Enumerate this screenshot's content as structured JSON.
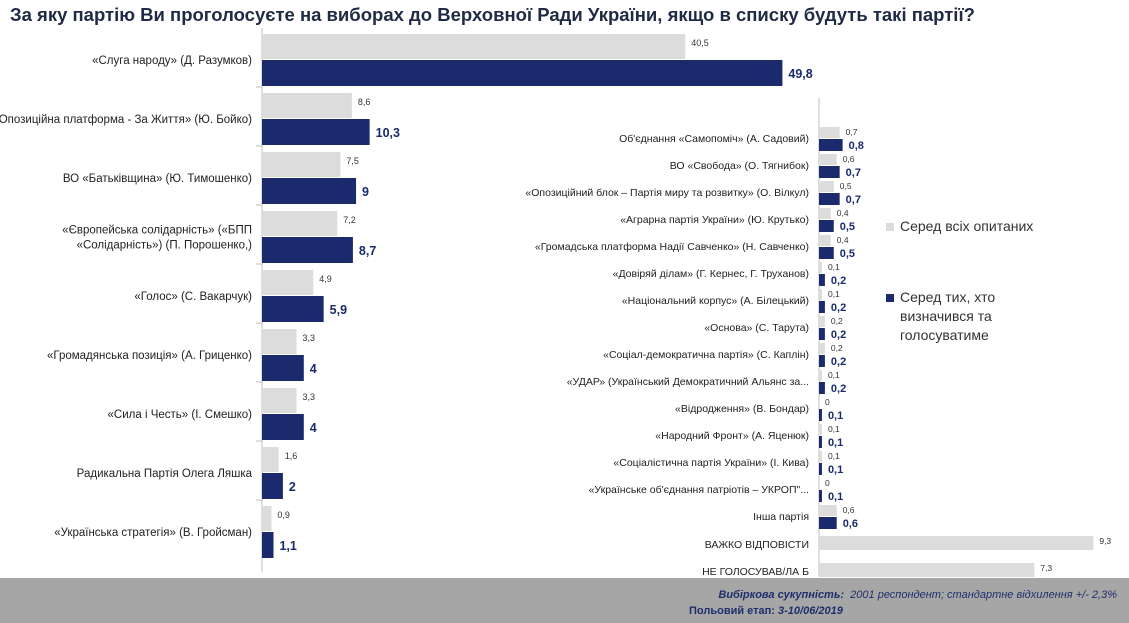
{
  "title": "За яку партію Ви проголосуєте на виборах до Верховної Ради України, якщо в списку будуть такі партії?",
  "colors": {
    "all": "#dcdcdc",
    "decided": "#1a2a6c",
    "footer_bg": "#a6a6a6",
    "title": "#1f2a44"
  },
  "legend": {
    "all": "Серед всіх опитаних",
    "decided": "Серед тих, хто визначився та голосуватиме"
  },
  "footer": {
    "sample_label": "Вибіркова сукупність:",
    "sample_value": "2001 респондент; стандартне відхилення +/- 2,3%",
    "field_label": "Польовий етап:",
    "field_value": "3-10/06/2019"
  },
  "chart_data": [
    {
      "type": "bar",
      "orientation": "horizontal",
      "categories": [
        "«Слуга народу» (Д. Разумков)",
        "«Опозиційна платформа - За Життя» (Ю. Бойко)",
        "ВО «Батьківщина» (Ю. Тимошенко)",
        "«Європейська солідарність» («БПП «Солідарність») (П. Порошенко,)",
        "«Голос» (С. Вакарчук)",
        "«Громадянська позиція» (А. Гриценко)",
        "«Сила і Честь» (І. Смешко)",
        "Радикальна Партія Олега Ляшка",
        "«Українська стратегія» (В. Гройсман)"
      ],
      "series": [
        {
          "name": "Серед всіх опитаних",
          "values": [
            40.5,
            8.6,
            7.5,
            7.2,
            4.9,
            3.3,
            3.3,
            1.6,
            0.9
          ],
          "labels": [
            "40,5",
            "8,6",
            "7,5",
            "7,2",
            "4,9",
            "3,3",
            "3,3",
            "1,6",
            "0,9"
          ]
        },
        {
          "name": "Серед тих, хто визначився та голосуватиме",
          "values": [
            49.8,
            10.3,
            9,
            8.7,
            5.9,
            4,
            4,
            2,
            1.1
          ],
          "labels": [
            "49,8",
            "10,3",
            "9",
            "8,7",
            "5,9",
            "4",
            "4",
            "2",
            "1,1"
          ]
        }
      ]
    },
    {
      "type": "bar",
      "orientation": "horizontal",
      "categories": [
        "Об'єднання «Самопоміч» (А. Садовий)",
        "ВО «Свобода» (О. Тягнибок)",
        "«Опозиційний блок – Партія миру та розвитку» (О. Вілкул)",
        "«Аграрна партія України» (Ю. Крутько)",
        "«Громадська платформа Надії Савченко» (Н. Савченко)",
        "«Довіряй ділам» (Г. Кернес, Г. Труханов)",
        "«Національний корпус» (А. Білецький)",
        "«Основа» (С. Тарута)",
        "«Соціал-демократична партія» (С. Каплін)",
        "«УДАР» (Український Демократичний Альянс за...",
        "«Відродження» (В. Бондар)",
        "«Народний Фронт» (А. Яценюк)",
        "«Соціалістична партія України» (І. Кива)",
        "«Українське об'єднання патріотів – УКРОП\"...",
        "Інша партія",
        "ВАЖКО ВІДПОВІСТИ",
        "НЕ ГОЛОСУВАВ/ЛА Б"
      ],
      "series": [
        {
          "name": "Серед всіх опитаних",
          "values": [
            0.7,
            0.6,
            0.5,
            0.4,
            0.4,
            0.1,
            0.1,
            0.2,
            0.2,
            0.1,
            0,
            0.1,
            0.1,
            0,
            0.6,
            9.3,
            7.3
          ],
          "labels": [
            "0,7",
            "0,6",
            "0,5",
            "0,4",
            "0,4",
            "0,1",
            "0,1",
            "0,2",
            "0,2",
            "0,1",
            "0",
            "0,1",
            "0,1",
            "0",
            "0,6",
            "9,3",
            "7,3"
          ]
        },
        {
          "name": "Серед тих, хто визначився та голосуватиме",
          "values": [
            0.8,
            0.7,
            0.7,
            0.5,
            0.5,
            0.2,
            0.2,
            0.2,
            0.2,
            0.2,
            0.1,
            0.1,
            0.1,
            0.1,
            0.6,
            null,
            null
          ],
          "labels": [
            "0,8",
            "0,7",
            "0,7",
            "0,5",
            "0,5",
            "0,2",
            "0,2",
            "0,2",
            "0,2",
            "0,2",
            "0,1",
            "0,1",
            "0,1",
            "0,1",
            "0,6",
            "",
            ""
          ]
        }
      ]
    }
  ]
}
